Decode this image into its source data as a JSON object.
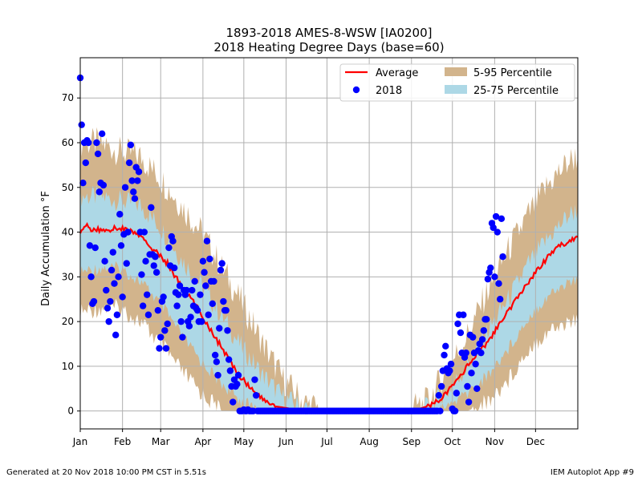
{
  "chart_data": {
    "type": "scatter",
    "title": "1893-2018 AMES-8-WSW [IA0200]",
    "subtitle": "2018 Heating Degree Days (base=60)",
    "ylabel": "Daily Accumulation °F",
    "xlabel": "",
    "x_ticks": [
      "Jan",
      "Feb",
      "Mar",
      "Apr",
      "May",
      "Jun",
      "Jul",
      "Aug",
      "Sep",
      "Oct",
      "Nov",
      "Dec"
    ],
    "x_tick_days": [
      1,
      32,
      60,
      91,
      121,
      152,
      182,
      213,
      244,
      274,
      305,
      335
    ],
    "xlim": [
      1,
      366
    ],
    "y_ticks": [
      0,
      10,
      20,
      30,
      40,
      50,
      60,
      70
    ],
    "ylim": [
      -4,
      79
    ],
    "grid": true,
    "legend_position": "top-right",
    "legend": {
      "average": "Average",
      "observed": "2018",
      "outer_band": "5-95 Percentile",
      "inner_band": "25-75 Percentile"
    },
    "colors": {
      "average": "#ff0000",
      "observed": "#0000ff",
      "outer_band": "#d2b48c",
      "inner_band": "#add8e6",
      "grid": "#b0b0b0"
    },
    "average_curve": [
      [
        1,
        39.5
      ],
      [
        5,
        41.5
      ],
      [
        10,
        40.5
      ],
      [
        20,
        40.5
      ],
      [
        30,
        41.0
      ],
      [
        40,
        40.0
      ],
      [
        45,
        39.0
      ],
      [
        55,
        36.0
      ],
      [
        65,
        33.0
      ],
      [
        75,
        28.0
      ],
      [
        85,
        24.0
      ],
      [
        95,
        19.0
      ],
      [
        105,
        14.0
      ],
      [
        115,
        9.0
      ],
      [
        125,
        5.5
      ],
      [
        135,
        2.5
      ],
      [
        145,
        1.0
      ],
      [
        160,
        0.3
      ],
      [
        180,
        0.0
      ],
      [
        240,
        0.0
      ],
      [
        250,
        0.5
      ],
      [
        260,
        1.5
      ],
      [
        270,
        4.0
      ],
      [
        280,
        8.0
      ],
      [
        290,
        12.0
      ],
      [
        300,
        15.5
      ],
      [
        310,
        20.0
      ],
      [
        320,
        24.5
      ],
      [
        330,
        29.0
      ],
      [
        340,
        33.0
      ],
      [
        350,
        36.5
      ],
      [
        360,
        38.0
      ],
      [
        366,
        39.3
      ]
    ],
    "percentile_5_95": [
      [
        1,
        22,
        60
      ],
      [
        15,
        23,
        60
      ],
      [
        30,
        23,
        58
      ],
      [
        45,
        20,
        57
      ],
      [
        60,
        15,
        52
      ],
      [
        75,
        9,
        46
      ],
      [
        90,
        4,
        40
      ],
      [
        105,
        0,
        32
      ],
      [
        120,
        0,
        24
      ],
      [
        135,
        0,
        15
      ],
      [
        150,
        0,
        7
      ],
      [
        165,
        0,
        2
      ],
      [
        180,
        0,
        0
      ],
      [
        240,
        0,
        0
      ],
      [
        255,
        0,
        2
      ],
      [
        270,
        0,
        9
      ],
      [
        285,
        0,
        17
      ],
      [
        300,
        2,
        27
      ],
      [
        315,
        7,
        36
      ],
      [
        330,
        14,
        44
      ],
      [
        345,
        18,
        51
      ],
      [
        360,
        20,
        56
      ],
      [
        366,
        20,
        57
      ]
    ],
    "percentile_25_75": [
      [
        1,
        31,
        48
      ],
      [
        15,
        32,
        48
      ],
      [
        30,
        32,
        47
      ],
      [
        45,
        29,
        46
      ],
      [
        60,
        24,
        41
      ],
      [
        75,
        17,
        34
      ],
      [
        90,
        11,
        28
      ],
      [
        105,
        6,
        21
      ],
      [
        120,
        2,
        14
      ],
      [
        135,
        0,
        8
      ],
      [
        150,
        0,
        3
      ],
      [
        165,
        0,
        0.8
      ],
      [
        180,
        0,
        0
      ],
      [
        240,
        0,
        0
      ],
      [
        255,
        0,
        0.7
      ],
      [
        270,
        1,
        4
      ],
      [
        285,
        4,
        10
      ],
      [
        300,
        8,
        18
      ],
      [
        315,
        14,
        25
      ],
      [
        330,
        21,
        33
      ],
      [
        345,
        26,
        39
      ],
      [
        360,
        29,
        44
      ],
      [
        366,
        29,
        45
      ]
    ],
    "observed_2018": [
      [
        1,
        74.5
      ],
      [
        2,
        64
      ],
      [
        3,
        51
      ],
      [
        4,
        60
      ],
      [
        5,
        55.5
      ],
      [
        6,
        60.5
      ],
      [
        7,
        60
      ],
      [
        8,
        37
      ],
      [
        9,
        30
      ],
      [
        10,
        24
      ],
      [
        11,
        24.5
      ],
      [
        12,
        36.5
      ],
      [
        13,
        60
      ],
      [
        14,
        57.5
      ],
      [
        15,
        49
      ],
      [
        16,
        51
      ],
      [
        17,
        62
      ],
      [
        18,
        50.5
      ],
      [
        19,
        33.5
      ],
      [
        20,
        27
      ],
      [
        21,
        23
      ],
      [
        22,
        20
      ],
      [
        23,
        24.5
      ],
      [
        24,
        31.5
      ],
      [
        25,
        35.5
      ],
      [
        26,
        28.5
      ],
      [
        27,
        17
      ],
      [
        28,
        21.5
      ],
      [
        29,
        30
      ],
      [
        30,
        44
      ],
      [
        31,
        37
      ],
      [
        32,
        25.5
      ],
      [
        33,
        39.5
      ],
      [
        34,
        50
      ],
      [
        35,
        33
      ],
      [
        36,
        40
      ],
      [
        37,
        55.5
      ],
      [
        38,
        59.5
      ],
      [
        39,
        51.5
      ],
      [
        40,
        49
      ],
      [
        41,
        47.5
      ],
      [
        42,
        54.5
      ],
      [
        43,
        51.5
      ],
      [
        44,
        53.5
      ],
      [
        45,
        40
      ],
      [
        46,
        30.5
      ],
      [
        47,
        23.5
      ],
      [
        48,
        40
      ],
      [
        49,
        33.5
      ],
      [
        50,
        26
      ],
      [
        51,
        21.5
      ],
      [
        52,
        35
      ],
      [
        53,
        45.5
      ],
      [
        54,
        35
      ],
      [
        55,
        32.5
      ],
      [
        56,
        34.5
      ],
      [
        57,
        31
      ],
      [
        58,
        22.5
      ],
      [
        59,
        14
      ],
      [
        60,
        16.5
      ],
      [
        61,
        24.5
      ],
      [
        62,
        25.5
      ],
      [
        63,
        18
      ],
      [
        64,
        14
      ],
      [
        65,
        19.5
      ],
      [
        66,
        36.5
      ],
      [
        67,
        32.5
      ],
      [
        68,
        39
      ],
      [
        69,
        38
      ],
      [
        70,
        32
      ],
      [
        71,
        26.5
      ],
      [
        72,
        23.5
      ],
      [
        73,
        26
      ],
      [
        74,
        28
      ],
      [
        75,
        20
      ],
      [
        76,
        16.5
      ],
      [
        77,
        27
      ],
      [
        78,
        26
      ],
      [
        79,
        27
      ],
      [
        80,
        20
      ],
      [
        81,
        19
      ],
      [
        82,
        21
      ],
      [
        83,
        27
      ],
      [
        84,
        23.5
      ],
      [
        85,
        29
      ],
      [
        86,
        23
      ],
      [
        87,
        22.5
      ],
      [
        88,
        20
      ],
      [
        89,
        26
      ],
      [
        90,
        20
      ],
      [
        91,
        33.5
      ],
      [
        92,
        31
      ],
      [
        93,
        28
      ],
      [
        94,
        38
      ],
      [
        95,
        21.5
      ],
      [
        96,
        34
      ],
      [
        97,
        29
      ],
      [
        98,
        24
      ],
      [
        99,
        29
      ],
      [
        100,
        12.5
      ],
      [
        101,
        11
      ],
      [
        102,
        8
      ],
      [
        103,
        18.5
      ],
      [
        104,
        31.5
      ],
      [
        105,
        33
      ],
      [
        106,
        24.5
      ],
      [
        107,
        22.5
      ],
      [
        108,
        22.5
      ],
      [
        109,
        18
      ],
      [
        110,
        11.5
      ],
      [
        111,
        9
      ],
      [
        112,
        5.5
      ],
      [
        113,
        2
      ],
      [
        114,
        7
      ],
      [
        115,
        5.5
      ],
      [
        116,
        6
      ],
      [
        117,
        8
      ],
      [
        118,
        0
      ],
      [
        119,
        0
      ],
      [
        120,
        0
      ],
      [
        121,
        0.3
      ],
      [
        122,
        0
      ],
      [
        123,
        0
      ],
      [
        124,
        0.3
      ],
      [
        125,
        0
      ],
      [
        126,
        0
      ],
      [
        127,
        0
      ],
      [
        128,
        0
      ],
      [
        129,
        7
      ],
      [
        130,
        3.5
      ],
      [
        131,
        0
      ],
      [
        132,
        0
      ],
      [
        133,
        0
      ],
      [
        134,
        0
      ],
      [
        135,
        0
      ],
      [
        136,
        0
      ],
      [
        137,
        0
      ],
      [
        138,
        0
      ],
      [
        139,
        0
      ],
      [
        140,
        0
      ],
      [
        141,
        0
      ],
      [
        142,
        0
      ],
      [
        143,
        0
      ],
      [
        144,
        0
      ],
      [
        145,
        0
      ],
      [
        146,
        0
      ],
      [
        147,
        0
      ],
      [
        148,
        0
      ],
      [
        149,
        0
      ],
      [
        150,
        0
      ],
      [
        151,
        0
      ],
      [
        152,
        0
      ],
      [
        153,
        0
      ],
      [
        154,
        0
      ],
      [
        155,
        0
      ],
      [
        156,
        0
      ],
      [
        157,
        0
      ],
      [
        158,
        0
      ],
      [
        159,
        0
      ],
      [
        160,
        0
      ],
      [
        161,
        0
      ],
      [
        162,
        0
      ],
      [
        163,
        0
      ],
      [
        164,
        0
      ],
      [
        165,
        0
      ],
      [
        166,
        0
      ],
      [
        167,
        0
      ],
      [
        168,
        0
      ],
      [
        169,
        0
      ],
      [
        170,
        0
      ],
      [
        171,
        0
      ],
      [
        172,
        0
      ],
      [
        173,
        0
      ],
      [
        174,
        0
      ],
      [
        175,
        0
      ],
      [
        176,
        0
      ],
      [
        177,
        0
      ],
      [
        178,
        0
      ],
      [
        179,
        0
      ],
      [
        180,
        0
      ],
      [
        181,
        0
      ],
      [
        182,
        0
      ],
      [
        183,
        0
      ],
      [
        184,
        0
      ],
      [
        185,
        0
      ],
      [
        186,
        0
      ],
      [
        187,
        0
      ],
      [
        188,
        0
      ],
      [
        189,
        0
      ],
      [
        190,
        0
      ],
      [
        191,
        0
      ],
      [
        192,
        0
      ],
      [
        193,
        0
      ],
      [
        194,
        0
      ],
      [
        195,
        0
      ],
      [
        196,
        0
      ],
      [
        197,
        0
      ],
      [
        198,
        0
      ],
      [
        199,
        0
      ],
      [
        200,
        0
      ],
      [
        201,
        0
      ],
      [
        202,
        0
      ],
      [
        203,
        0
      ],
      [
        204,
        0
      ],
      [
        205,
        0
      ],
      [
        206,
        0
      ],
      [
        207,
        0
      ],
      [
        208,
        0
      ],
      [
        209,
        0
      ],
      [
        210,
        0
      ],
      [
        211,
        0
      ],
      [
        212,
        0
      ],
      [
        213,
        0
      ],
      [
        214,
        0
      ],
      [
        215,
        0
      ],
      [
        216,
        0
      ],
      [
        217,
        0
      ],
      [
        218,
        0
      ],
      [
        219,
        0
      ],
      [
        220,
        0
      ],
      [
        221,
        0
      ],
      [
        222,
        0
      ],
      [
        223,
        0
      ],
      [
        224,
        0
      ],
      [
        225,
        0
      ],
      [
        226,
        0
      ],
      [
        227,
        0
      ],
      [
        228,
        0
      ],
      [
        229,
        0
      ],
      [
        230,
        0
      ],
      [
        231,
        0
      ],
      [
        232,
        0
      ],
      [
        233,
        0
      ],
      [
        234,
        0
      ],
      [
        235,
        0
      ],
      [
        236,
        0
      ],
      [
        237,
        0
      ],
      [
        238,
        0
      ],
      [
        239,
        0
      ],
      [
        240,
        0
      ],
      [
        241,
        0
      ],
      [
        242,
        0
      ],
      [
        243,
        0
      ],
      [
        244,
        0
      ],
      [
        245,
        0
      ],
      [
        246,
        0
      ],
      [
        247,
        0
      ],
      [
        248,
        0
      ],
      [
        249,
        0
      ],
      [
        250,
        0
      ],
      [
        251,
        0
      ],
      [
        252,
        0
      ],
      [
        253,
        0
      ],
      [
        254,
        0
      ],
      [
        255,
        0
      ],
      [
        256,
        0
      ],
      [
        257,
        0
      ],
      [
        258,
        0
      ],
      [
        259,
        0
      ],
      [
        260,
        0
      ],
      [
        261,
        0
      ],
      [
        262,
        0
      ],
      [
        263,
        0
      ],
      [
        264,
        3.5
      ],
      [
        265,
        0
      ],
      [
        266,
        5.5
      ],
      [
        267,
        9
      ],
      [
        268,
        12.5
      ],
      [
        269,
        14.5
      ],
      [
        270,
        9.5
      ],
      [
        271,
        8.5
      ],
      [
        272,
        9
      ],
      [
        273,
        10.5
      ],
      [
        274,
        0.5
      ],
      [
        275,
        0
      ],
      [
        276,
        0
      ],
      [
        277,
        4
      ],
      [
        278,
        19.5
      ],
      [
        279,
        21.5
      ],
      [
        280,
        17.5
      ],
      [
        281,
        13
      ],
      [
        282,
        21.5
      ],
      [
        283,
        12
      ],
      [
        284,
        13
      ],
      [
        285,
        5.5
      ],
      [
        286,
        2
      ],
      [
        287,
        17
      ],
      [
        288,
        8.5
      ],
      [
        289,
        16.5
      ],
      [
        290,
        13
      ],
      [
        291,
        10.5
      ],
      [
        292,
        5
      ],
      [
        293,
        13.5
      ],
      [
        294,
        15
      ],
      [
        295,
        13
      ],
      [
        296,
        16
      ],
      [
        297,
        18
      ],
      [
        298,
        20.5
      ],
      [
        299,
        20.5
      ],
      [
        300,
        29.5
      ],
      [
        301,
        31
      ],
      [
        302,
        32
      ],
      [
        303,
        42
      ],
      [
        304,
        41
      ],
      [
        305,
        30
      ],
      [
        306,
        43.5
      ],
      [
        307,
        40
      ],
      [
        308,
        28.5
      ],
      [
        309,
        25
      ],
      [
        310,
        43
      ],
      [
        311,
        34.5
      ]
    ],
    "annotations": {
      "footer_left": "Generated at 20 Nov 2018 10:00 PM CST in 5.51s",
      "footer_right": "IEM Autoplot App #9"
    }
  }
}
